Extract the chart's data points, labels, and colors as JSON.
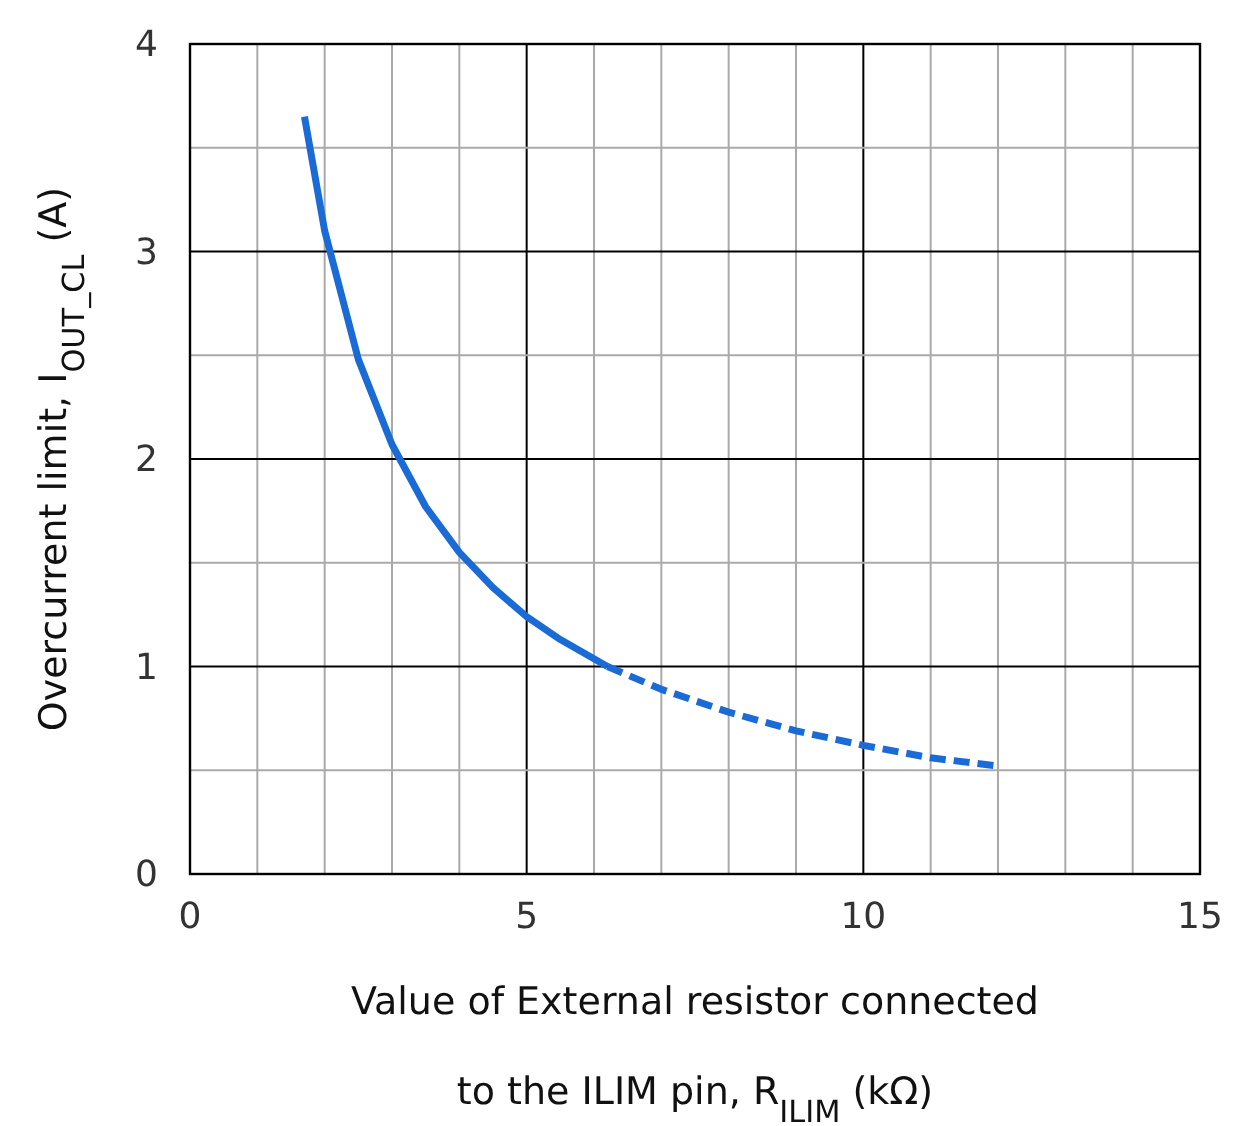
{
  "chart_data": {
    "type": "line",
    "xlabel": "Value of External resistor connected\nto the ILIM pin, R$_{ILIM}$ (kΩ)",
    "ylabel": "Overcurrent limit, I$_{OUT_CL}$  (A)",
    "xlim": [
      0,
      15
    ],
    "ylim": [
      0,
      4
    ],
    "xticks": [
      0,
      {
        "value": 1,
        "label": null
      },
      {
        "value": 2,
        "label": null
      },
      {
        "value": 3,
        "label": null
      },
      {
        "value": 4,
        "label": null
      },
      5,
      {
        "value": 6,
        "label": null
      },
      {
        "value": 7,
        "label": null
      },
      {
        "value": 8,
        "label": null
      },
      {
        "value": 9,
        "label": null
      },
      10,
      {
        "value": 11,
        "label": null
      },
      {
        "value": 12,
        "label": null
      },
      {
        "value": 13,
        "label": null
      },
      {
        "value": 14,
        "label": null
      },
      15
    ],
    "yticks": [
      0,
      {
        "value": 0.5,
        "label": null
      },
      1,
      {
        "value": 1.5,
        "label": null
      },
      2,
      {
        "value": 2.5,
        "label": null
      },
      3,
      {
        "value": 3.5,
        "label": null
      },
      4
    ],
    "grid": true,
    "marker": "none",
    "series": [
      {
        "color": "#1a6bd6",
        "line_style": "solid",
        "x": [
          1.7,
          2,
          2.5,
          3,
          3.5,
          4,
          4.5,
          5,
          5.5,
          6.2
        ],
        "values": [
          3.65,
          3.1,
          2.48,
          2.07,
          1.77,
          1.55,
          1.38,
          1.24,
          1.13,
          1.0
        ]
      },
      {
        "color": "#1a6bd6",
        "line_style": "dashed",
        "x": [
          6.2,
          7,
          8,
          9,
          10,
          11,
          12
        ],
        "values": [
          1.0,
          0.89,
          0.78,
          0.69,
          0.62,
          0.56,
          0.52
        ]
      }
    ]
  }
}
